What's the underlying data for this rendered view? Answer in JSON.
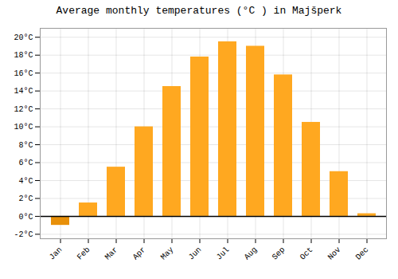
{
  "chart_data": {
    "type": "bar",
    "title": "Average monthly temperatures (°C ) in Majšperk",
    "categories": [
      "Jan",
      "Feb",
      "Mar",
      "Apr",
      "May",
      "Jun",
      "Jul",
      "Aug",
      "Sep",
      "Oct",
      "Nov",
      "Dec"
    ],
    "values": [
      -1.0,
      1.5,
      5.5,
      10.0,
      14.5,
      17.8,
      19.5,
      19.0,
      15.8,
      10.5,
      5.0,
      0.3
    ],
    "colors": [
      "#E8900A",
      "#FFA820",
      "#FFA820",
      "#FFA820",
      "#FFA820",
      "#FFA820",
      "#FFA820",
      "#FFA820",
      "#FFA820",
      "#FFA820",
      "#FFA820",
      "#FFA820"
    ],
    "ylim": [
      -2.5,
      21.0
    ],
    "yticks": [
      {
        "value": -2,
        "label": "-2°C"
      },
      {
        "value": 0,
        "label": "0°C"
      },
      {
        "value": 2,
        "label": "2°C"
      },
      {
        "value": 4,
        "label": "4°C"
      },
      {
        "value": 6,
        "label": "6°C"
      },
      {
        "value": 8,
        "label": "8°C"
      },
      {
        "value": 10,
        "label": "10°C"
      },
      {
        "value": 12,
        "label": "12°C"
      },
      {
        "value": 14,
        "label": "14°C"
      },
      {
        "value": 16,
        "label": "16°C"
      },
      {
        "value": 18,
        "label": "18°C"
      },
      {
        "value": 20,
        "label": "20°C"
      }
    ],
    "grid": true
  }
}
